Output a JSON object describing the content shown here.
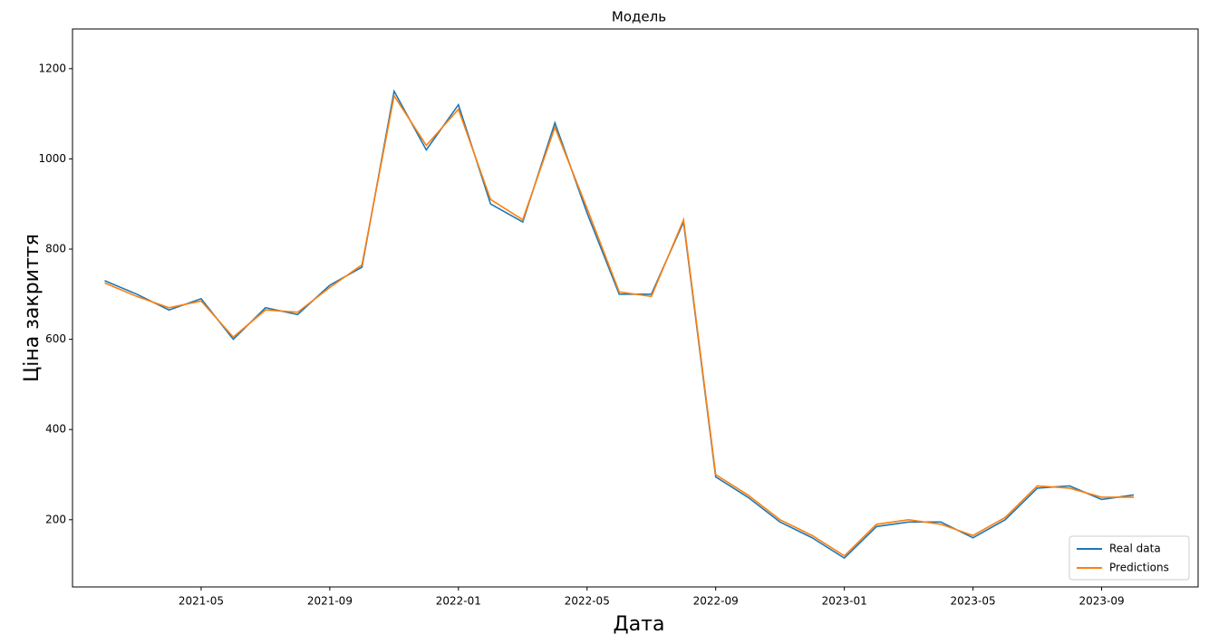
{
  "chart_data": {
    "type": "line",
    "title": "Модель",
    "x_label": "Дата",
    "y_label": "Ціна закриття",
    "x": [
      "2021-02",
      "2021-03",
      "2021-04",
      "2021-05",
      "2021-06",
      "2021-07",
      "2021-08",
      "2021-09",
      "2021-10",
      "2021-11",
      "2021-12",
      "2022-01",
      "2022-02",
      "2022-03",
      "2022-04",
      "2022-05",
      "2022-06",
      "2022-07",
      "2022-08",
      "2022-09",
      "2022-10",
      "2022-11",
      "2022-12",
      "2023-01",
      "2023-02",
      "2023-03",
      "2023-04",
      "2023-05",
      "2023-06",
      "2023-07",
      "2023-08",
      "2023-09",
      "2023-10"
    ],
    "series": [
      {
        "name": "Real data",
        "color": "#1f77b4",
        "values": [
          730,
          700,
          665,
          690,
          600,
          670,
          655,
          720,
          760,
          1150,
          1020,
          1120,
          900,
          860,
          1080,
          880,
          700,
          700,
          860,
          295,
          250,
          195,
          160,
          115,
          185,
          195,
          195,
          160,
          200,
          270,
          275,
          245,
          255
        ]
      },
      {
        "name": "Predictions",
        "color": "#ff7f0e",
        "values": [
          725,
          695,
          670,
          685,
          605,
          665,
          660,
          715,
          765,
          1140,
          1030,
          1110,
          910,
          865,
          1070,
          890,
          705,
          695,
          865,
          300,
          255,
          200,
          165,
          120,
          190,
          200,
          190,
          165,
          205,
          275,
          270,
          250,
          250
        ]
      }
    ],
    "xlim": [
      "2021-01",
      "2023-12"
    ],
    "ylim": [
      51,
      1288
    ],
    "xticks": [
      "2021-05",
      "2021-09",
      "2022-01",
      "2022-05",
      "2022-09",
      "2023-01",
      "2023-05",
      "2023-09"
    ],
    "yticks": [
      200,
      400,
      600,
      800,
      1000,
      1200
    ],
    "legend": "lower right"
  }
}
